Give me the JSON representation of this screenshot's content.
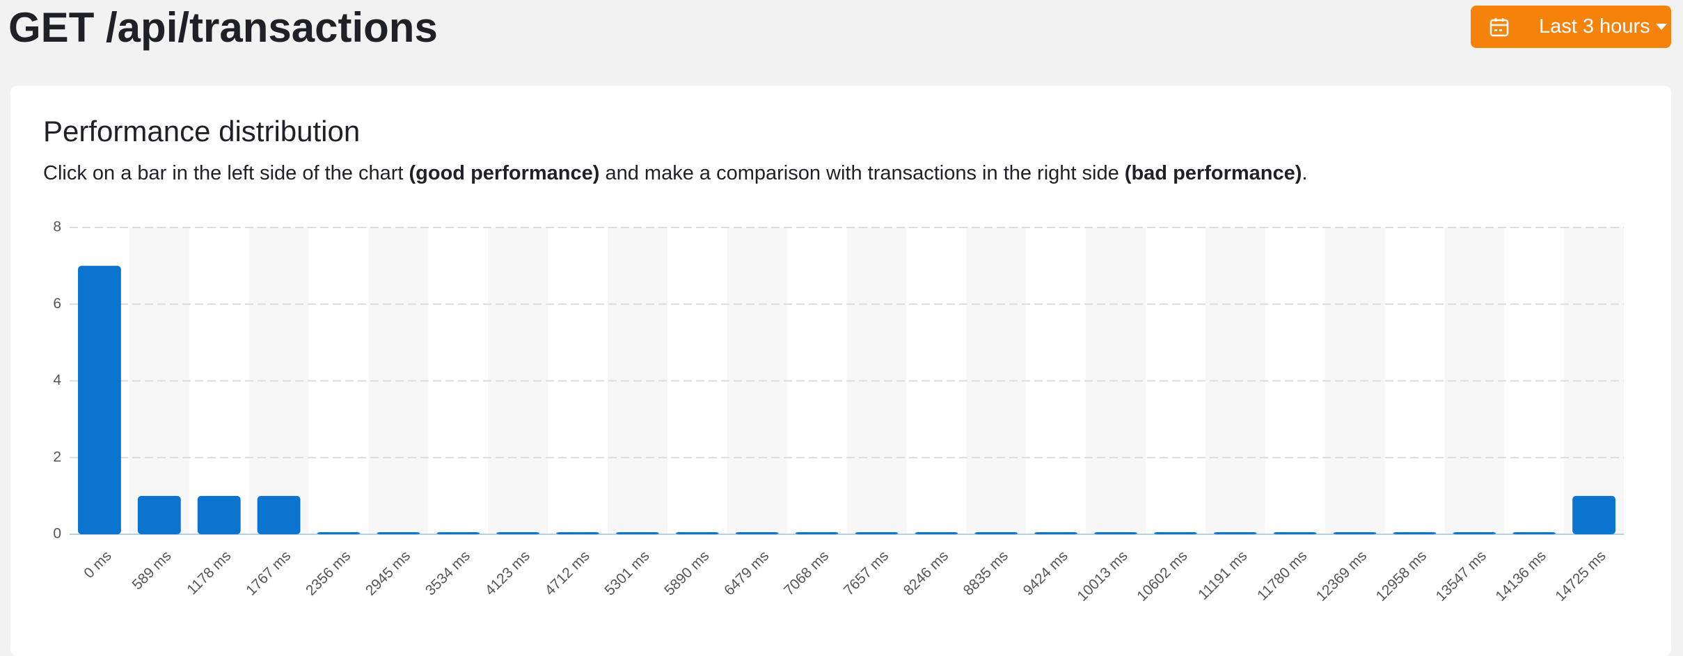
{
  "header": {
    "title": "GET /api/transactions",
    "range_button": "Last 3 hours"
  },
  "card": {
    "title": "Performance distribution",
    "description": [
      "Click on a bar in the left side of the chart ",
      "(good performance)",
      " and make a comparison with transactions in the right side ",
      "(bad performance)",
      "."
    ]
  },
  "chart_data": {
    "type": "bar",
    "categories": [
      "0 ms",
      "589 ms",
      "1178 ms",
      "1767 ms",
      "2356 ms",
      "2945 ms",
      "3534 ms",
      "4123 ms",
      "4712 ms",
      "5301 ms",
      "5890 ms",
      "6479 ms",
      "7068 ms",
      "7657 ms",
      "8246 ms",
      "8835 ms",
      "9424 ms",
      "10013 ms",
      "10602 ms",
      "11191 ms",
      "11780 ms",
      "12369 ms",
      "12958 ms",
      "13547 ms",
      "14136 ms",
      "14725 ms"
    ],
    "values": [
      7,
      1,
      1,
      1,
      0,
      0,
      0,
      0,
      0,
      0,
      0,
      0,
      0,
      0,
      0,
      0,
      0,
      0,
      0,
      0,
      0,
      0,
      0,
      0,
      0,
      1
    ],
    "color": "#0b74cf",
    "ylim": [
      0,
      8
    ],
    "yticks": [
      0,
      2,
      4,
      6,
      8
    ],
    "grid": true
  }
}
